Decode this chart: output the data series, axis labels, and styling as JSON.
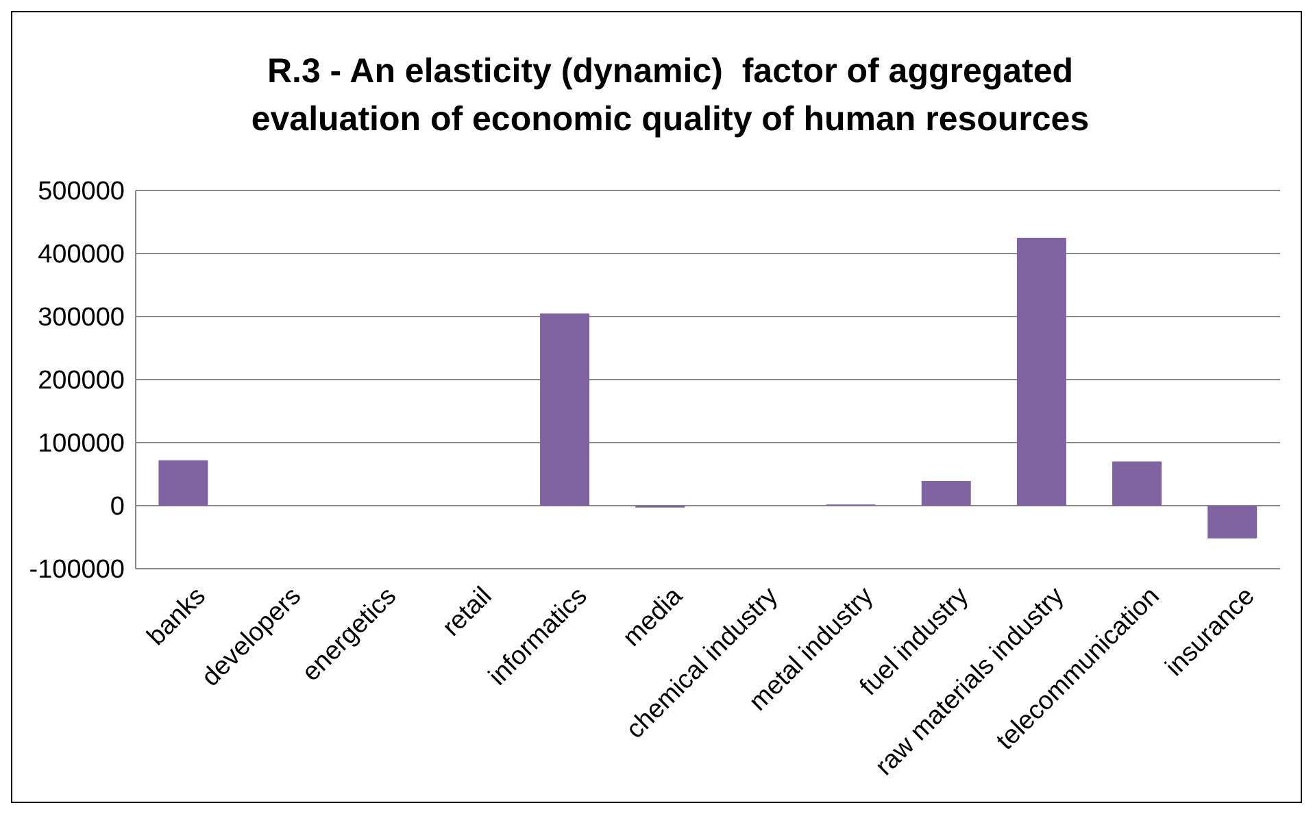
{
  "chart_data": {
    "type": "bar",
    "title": "R.3 - An elasticity (dynamic)  factor of aggregated evaluation of economic quality of human resources",
    "categories": [
      "banks",
      "developers",
      "energetics",
      "retail",
      "informatics",
      "media",
      "chemical industry",
      "metal industry",
      "fuel industry",
      "raw materials industry",
      "telecommunication",
      "insurance"
    ],
    "values": [
      72000,
      0,
      0,
      0,
      305000,
      -3000,
      0,
      2000,
      39000,
      425000,
      70000,
      -52000
    ],
    "color": "#8064a2",
    "ylim": [
      -100000,
      500000
    ],
    "yticks": [
      -100000,
      0,
      100000,
      200000,
      300000,
      400000,
      500000
    ],
    "grid": "y",
    "legend": false
  }
}
